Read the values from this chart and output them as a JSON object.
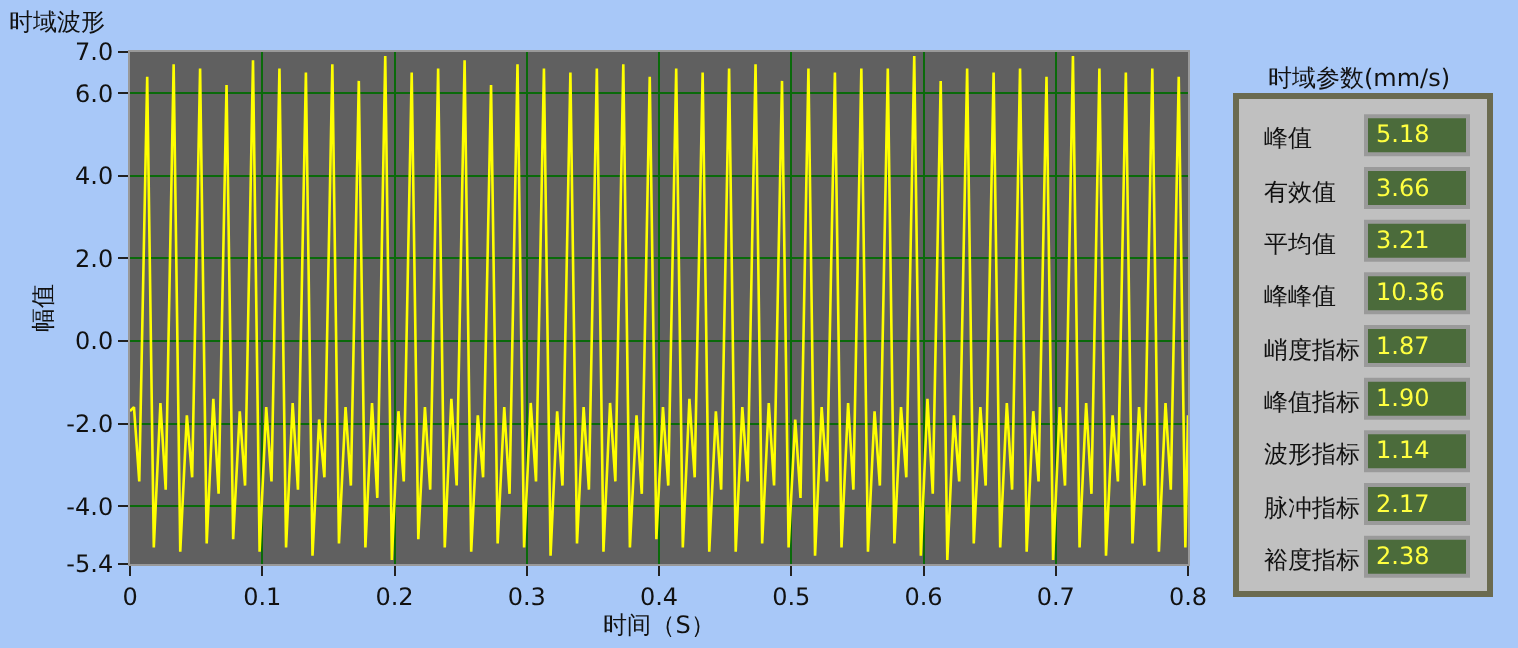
{
  "chart_data": [
    {
      "type": "line",
      "title": "时域波形",
      "xlabel": "时间（S）",
      "ylabel": "幅值",
      "color": "#ffff00",
      "grid": true,
      "xlim": [
        0,
        0.8
      ],
      "xticks": [
        0,
        0.1,
        0.2,
        0.3,
        0.4,
        0.5,
        0.6,
        0.7,
        0.8
      ],
      "ylim": [
        -5.4,
        7.0
      ],
      "yticks": [
        {
          "value": 7.0,
          "label": "7.0"
        },
        {
          "value": 6.0,
          "label": "6.0"
        },
        {
          "value": 4.0,
          "label": "4.0"
        },
        {
          "value": 2.0,
          "label": "2.0"
        },
        {
          "value": 0.0,
          "label": "0.0"
        },
        {
          "value": -2.0,
          "label": "-2.0"
        },
        {
          "value": -4.0,
          "label": "-4.0"
        },
        {
          "value": -5.4,
          "label": "-5.4"
        }
      ],
      "x": [
        0,
        0.003,
        0.007,
        0.013,
        0.018,
        0.023,
        0.027,
        0.033,
        0.038,
        0.043,
        0.047,
        0.053,
        0.058,
        0.063,
        0.067,
        0.073,
        0.078,
        0.083,
        0.087,
        0.093,
        0.098,
        0.103,
        0.107,
        0.113,
        0.118,
        0.123,
        0.127,
        0.133,
        0.138,
        0.143,
        0.147,
        0.153,
        0.158,
        0.163,
        0.167,
        0.173,
        0.178,
        0.183,
        0.187,
        0.193,
        0.198,
        0.203,
        0.207,
        0.213,
        0.218,
        0.223,
        0.227,
        0.233,
        0.238,
        0.243,
        0.247,
        0.253,
        0.258,
        0.263,
        0.267,
        0.273,
        0.278,
        0.283,
        0.287,
        0.293,
        0.298,
        0.303,
        0.307,
        0.313,
        0.318,
        0.323,
        0.327,
        0.333,
        0.338,
        0.343,
        0.347,
        0.353,
        0.358,
        0.363,
        0.367,
        0.373,
        0.378,
        0.383,
        0.387,
        0.393,
        0.398,
        0.403,
        0.407,
        0.413,
        0.418,
        0.423,
        0.427,
        0.433,
        0.438,
        0.443,
        0.447,
        0.453,
        0.458,
        0.463,
        0.467,
        0.473,
        0.478,
        0.483,
        0.487,
        0.493,
        0.498,
        0.503,
        0.507,
        0.513,
        0.518,
        0.523,
        0.527,
        0.533,
        0.538,
        0.543,
        0.547,
        0.553,
        0.558,
        0.563,
        0.567,
        0.573,
        0.578,
        0.583,
        0.587,
        0.593,
        0.598,
        0.603,
        0.607,
        0.613,
        0.618,
        0.623,
        0.627,
        0.633,
        0.638,
        0.643,
        0.647,
        0.653,
        0.658,
        0.663,
        0.667,
        0.673,
        0.678,
        0.683,
        0.687,
        0.693,
        0.698,
        0.703,
        0.707,
        0.713,
        0.718,
        0.723,
        0.727,
        0.733,
        0.738,
        0.743,
        0.747,
        0.753,
        0.758,
        0.763,
        0.767,
        0.773,
        0.778,
        0.783,
        0.787,
        0.793,
        0.798,
        0.8
      ],
      "values": [
        -1.7,
        -1.6,
        -3.4,
        6.4,
        -5.0,
        -1.5,
        -3.6,
        6.7,
        -5.1,
        -1.8,
        -3.3,
        6.6,
        -4.9,
        -1.4,
        -3.7,
        6.2,
        -4.8,
        -1.7,
        -3.5,
        6.8,
        -5.1,
        -1.6,
        -3.4,
        6.6,
        -5.0,
        -1.5,
        -3.6,
        6.5,
        -5.2,
        -1.9,
        -3.3,
        6.7,
        -4.9,
        -1.6,
        -3.5,
        6.3,
        -5.0,
        -1.5,
        -3.8,
        6.9,
        -5.3,
        -1.7,
        -3.4,
        6.5,
        -4.8,
        -1.6,
        -3.6,
        6.6,
        -5.0,
        -1.4,
        -3.5,
        6.8,
        -5.1,
        -1.8,
        -3.3,
        6.2,
        -4.9,
        -1.6,
        -3.7,
        6.7,
        -5.0,
        -1.5,
        -3.4,
        6.6,
        -5.2,
        -1.7,
        -3.5,
        6.5,
        -4.9,
        -1.6,
        -3.6,
        6.6,
        -5.1,
        -1.5,
        -3.4,
        6.7,
        -5.0,
        -1.8,
        -3.7,
        6.4,
        -4.8,
        -1.6,
        -3.5,
        6.6,
        -5.0,
        -1.4,
        -3.3,
        6.5,
        -5.1,
        -1.7,
        -3.6,
        6.6,
        -5.1,
        -1.6,
        -3.4,
        6.7,
        -4.9,
        -1.5,
        -3.5,
        6.3,
        -5.0,
        -1.9,
        -3.8,
        6.6,
        -5.2,
        -1.6,
        -3.4,
        6.5,
        -5.0,
        -1.5,
        -3.6,
        6.6,
        -5.1,
        -1.7,
        -3.5,
        6.6,
        -4.9,
        -1.6,
        -3.3,
        6.9,
        -5.2,
        -1.4,
        -3.7,
        6.3,
        -5.3,
        -1.8,
        -3.4,
        6.6,
        -4.9,
        -1.6,
        -3.5,
        6.5,
        -5.0,
        -1.5,
        -3.6,
        6.6,
        -5.1,
        -1.7,
        -3.4,
        6.4,
        -5.3,
        -1.6,
        -3.5,
        6.9,
        -5.0,
        -1.5,
        -3.7,
        6.6,
        -5.2,
        -1.8,
        -3.4,
        6.5,
        -4.9,
        -1.6,
        -3.5,
        6.6,
        -5.1,
        -1.5,
        -3.6,
        6.4,
        -5.0,
        -1.8
      ]
    },
    {
      "type": "other",
      "title": "时域参数(mm/s)",
      "categories": [
        "峰值",
        "有效值",
        "平均值",
        "峰峰值",
        "峭度指标",
        "峰值指标",
        "波形指标",
        "脉冲指标",
        "裕度指标"
      ],
      "values": [
        5.18,
        3.66,
        3.21,
        10.36,
        1.87,
        1.9,
        1.14,
        2.17,
        2.38
      ],
      "value_labels": [
        "5.18",
        "3.66",
        "3.21",
        "10.36",
        "1.87",
        "1.90",
        "1.14",
        "2.17",
        "2.38"
      ]
    }
  ]
}
